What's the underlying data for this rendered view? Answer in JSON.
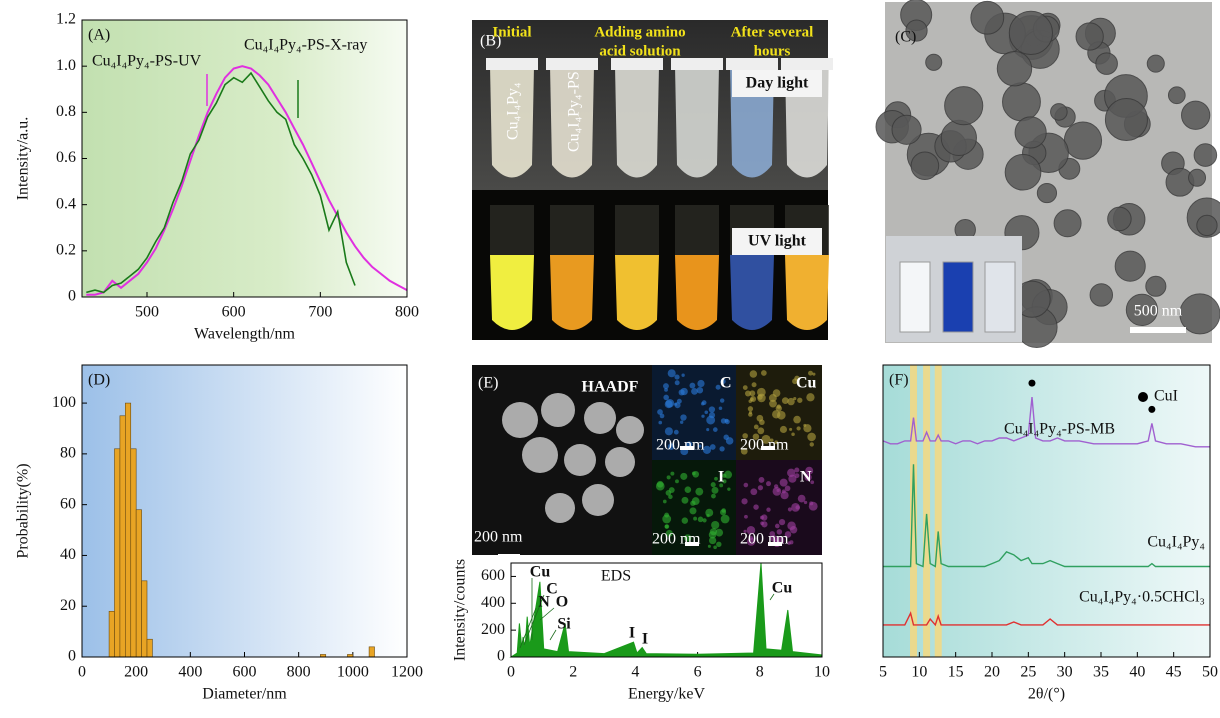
{
  "chart_data": [
    {
      "type": "line",
      "panel_label": "(A)",
      "x_label": "Wavelength/nm",
      "y_label": "Intensity/a.u.",
      "xlim": [
        425,
        800
      ],
      "xticks": [
        500,
        600,
        700,
        800
      ],
      "ylim": [
        0,
        1.2
      ],
      "yticks": [
        0,
        0.2,
        0.4,
        0.6,
        0.8,
        {
          "value": 1,
          "label": "1.0"
        },
        1.2
      ],
      "series": [
        {
          "name": "Cu₄I₄Py₄-PS-UV",
          "color": "#e030e0",
          "x": [
            430,
            440,
            450,
            460,
            470,
            480,
            490,
            500,
            510,
            520,
            530,
            540,
            550,
            560,
            570,
            580,
            590,
            600,
            610,
            620,
            630,
            640,
            650,
            660,
            670,
            680,
            690,
            700,
            710,
            720,
            730,
            740,
            750,
            760,
            770,
            780,
            790,
            800
          ],
          "values": [
            0.01,
            0.01,
            0.02,
            0.07,
            0.04,
            0.07,
            0.1,
            0.15,
            0.21,
            0.29,
            0.38,
            0.48,
            0.59,
            0.7,
            0.8,
            0.88,
            0.95,
            0.99,
            1.0,
            0.99,
            0.96,
            0.92,
            0.86,
            0.8,
            0.73,
            0.66,
            0.58,
            0.5,
            0.42,
            0.35,
            0.28,
            0.22,
            0.17,
            0.13,
            0.1,
            0.07,
            0.05,
            0.03
          ]
        },
        {
          "name": "Cu₄I₄Py₄-PS-X-ray",
          "color": "#1a7a1a",
          "x": [
            430,
            440,
            450,
            460,
            470,
            480,
            490,
            500,
            510,
            520,
            530,
            540,
            550,
            560,
            570,
            580,
            590,
            600,
            610,
            620,
            630,
            640,
            650,
            660,
            670,
            680,
            690,
            700,
            710,
            720,
            730,
            740
          ],
          "values": [
            0.02,
            0.03,
            0.02,
            0.05,
            0.06,
            0.09,
            0.12,
            0.17,
            0.24,
            0.3,
            0.41,
            0.5,
            0.62,
            0.68,
            0.78,
            0.84,
            0.92,
            0.95,
            0.93,
            0.97,
            0.91,
            0.85,
            0.8,
            0.77,
            0.66,
            0.6,
            0.53,
            0.44,
            0.29,
            0.37,
            0.15,
            0.05
          ]
        }
      ]
    },
    {
      "type": "histogram",
      "panel_label": "(D)",
      "x_label": "Diameter/nm",
      "y_label": "Probability(%)",
      "color": "#e8a424",
      "xlim": [
        0,
        1200
      ],
      "xticks": [
        0,
        200,
        400,
        600,
        800,
        1000,
        1200
      ],
      "ylim": [
        0,
        115
      ],
      "yticks": [
        0,
        20,
        40,
        60,
        80,
        100
      ],
      "bins": [
        100,
        120,
        140,
        160,
        180,
        200,
        220,
        240,
        260,
        280,
        300,
        320,
        340,
        360,
        380,
        400,
        420,
        440,
        460,
        480,
        500,
        520,
        540,
        560,
        580,
        600,
        620,
        640,
        660,
        680,
        700,
        720,
        740,
        760,
        780,
        800,
        820,
        840,
        860,
        880,
        900,
        920,
        940,
        960,
        980,
        1000,
        1020,
        1040,
        1060,
        1080
      ],
      "values": [
        18,
        82,
        95,
        100,
        82,
        58,
        30,
        7,
        0,
        0,
        0,
        0,
        0,
        0,
        0,
        0,
        0,
        0,
        0,
        0,
        0,
        0,
        0,
        0,
        0,
        0,
        0,
        0,
        0,
        0,
        0,
        0,
        0,
        0,
        0,
        0,
        0,
        0,
        0,
        1,
        0,
        0,
        0,
        0,
        1,
        0,
        0,
        0,
        4
      ]
    },
    {
      "type": "area",
      "panel_title": "EDS",
      "x_label": "Energy/keV",
      "y_label": "Intensity/counts",
      "color": "#1a9a1a",
      "xlim": [
        0,
        10
      ],
      "xticks": [
        0,
        2,
        4,
        6,
        8,
        10
      ],
      "ylim": [
        0,
        700
      ],
      "yticks": [
        0,
        200,
        400,
        600
      ],
      "peak_labels": [
        "Cu",
        "C",
        "N",
        "O",
        "Si",
        "I",
        "I",
        "Cu"
      ],
      "x": [
        0,
        0.2,
        0.27,
        0.35,
        0.39,
        0.45,
        0.52,
        0.6,
        0.93,
        1.05,
        1.5,
        1.74,
        1.85,
        3,
        3.94,
        4.05,
        4.22,
        4.35,
        6,
        7.8,
        8.04,
        8.2,
        8.7,
        8.9,
        9.05,
        10
      ],
      "values": [
        0,
        30,
        250,
        60,
        150,
        60,
        300,
        80,
        560,
        60,
        40,
        250,
        40,
        25,
        110,
        30,
        70,
        25,
        20,
        30,
        700,
        60,
        50,
        350,
        40,
        15
      ]
    },
    {
      "type": "line",
      "panel_label": "(F)",
      "x_label": "2θ/(°)",
      "legend": "CuI",
      "xlim": [
        5,
        50
      ],
      "xticks": [
        5,
        10,
        15,
        20,
        25,
        30,
        35,
        40,
        45,
        50
      ],
      "ylim": [
        0,
        100
      ],
      "highlight_bands": [
        9.2,
        11,
        12.6
      ],
      "x": [
        5,
        6,
        7,
        8,
        8.8,
        9.2,
        9.6,
        10.5,
        11,
        11.5,
        12.2,
        12.6,
        13,
        14,
        15,
        16,
        17,
        18,
        19,
        20,
        21,
        22,
        23,
        24,
        25,
        25.5,
        26,
        27,
        28,
        29,
        30,
        32,
        34,
        36,
        38,
        40,
        41.5,
        42,
        42.5,
        44,
        46,
        48,
        50
      ],
      "series": [
        {
          "name": "Cu₄I₄Py₄-PS-MB",
          "color": "#a060d0",
          "values": [
            74,
            73,
            73,
            74,
            74,
            82,
            74,
            74,
            77,
            74,
            74,
            76,
            74,
            74,
            73,
            74,
            74,
            73,
            74,
            74,
            75,
            75,
            74,
            75,
            76,
            89,
            75,
            74,
            74,
            75,
            74,
            74,
            73,
            73,
            73,
            73,
            74,
            80,
            74,
            73,
            73,
            72,
            72
          ]
        },
        {
          "name": "Cu₄I₄Py₄",
          "color": "#30a060",
          "values": [
            31,
            31,
            31,
            31,
            31,
            66,
            32,
            31,
            49,
            32,
            31,
            43,
            32,
            31,
            31,
            31,
            31,
            31,
            31,
            32,
            33,
            36,
            35,
            33,
            34,
            32,
            32,
            32,
            33,
            32,
            31,
            31,
            31,
            31,
            31,
            31,
            31,
            32,
            31,
            31,
            31,
            31,
            31
          ]
        },
        {
          "name": "Cu₄I₄Py₄·0.5CHCl₃",
          "color": "#e03030",
          "values": [
            11,
            11,
            11,
            11,
            15,
            11,
            11,
            11,
            11,
            13,
            11,
            14,
            11,
            11,
            11,
            11,
            11,
            11,
            11,
            11,
            11,
            11,
            12,
            11,
            11,
            11,
            11,
            11,
            13,
            11,
            11,
            11,
            11,
            11,
            11,
            11,
            11,
            11,
            11,
            11,
            11,
            11,
            11
          ]
        }
      ]
    }
  ],
  "panel_b": {
    "label": "(B)",
    "headers": [
      "Initial",
      [
        "Adding amino",
        "acid solution"
      ],
      [
        "After several",
        "hours"
      ]
    ],
    "tube_labels": [
      "Cu₄I₄Py₄",
      "Cu₄I₄Py₄-PS"
    ],
    "conditions": [
      "Day light",
      "UV light"
    ]
  },
  "panel_c": {
    "label": "(C)",
    "scale_bar": "500 nm"
  },
  "panel_e": {
    "label": "(E)",
    "main": "HAADF",
    "maps": [
      "C",
      "Cu",
      "I",
      "N"
    ],
    "scale_bar": "200 nm"
  }
}
